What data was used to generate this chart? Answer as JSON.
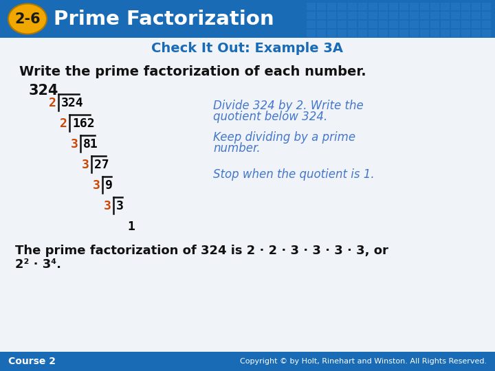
{
  "title_badge": "2-6",
  "title_text": "Prime Factorization",
  "subtitle": "Check It Out: Example 3A",
  "header_bg_color": "#1a6bb5",
  "header_text_color": "#ffffff",
  "badge_bg_color": "#f0a800",
  "badge_text_color": "#1a1a1a",
  "subtitle_color": "#1a6bb5",
  "body_bg_color": "#f0f4f8",
  "instruction": "Write the prime factorization of each number.",
  "number_label": "324",
  "divisor_color": "#cc4400",
  "dividend_color": "#000000",
  "note_color": "#4477cc",
  "conclusion1": "The prime factorization of 324 is 2 · 2 · 3 · 3 · 3 · 3, or",
  "conclusion2": "2² · 3⁴.",
  "footer_bg": "#1a6bb5",
  "footer_left": "Course 2",
  "footer_right": "Copyright © by Holt, Rinehart and Winston. All Rights Reserved.",
  "footer_text_color": "#ffffff",
  "grid_pattern_color": "#2a7bc8",
  "division_steps": [
    {
      "divisor": "2",
      "dividend": "324"
    },
    {
      "divisor": "2",
      "dividend": "162"
    },
    {
      "divisor": "3",
      "dividend": "81"
    },
    {
      "divisor": "3",
      "dividend": "27"
    },
    {
      "divisor": "3",
      "dividend": "9"
    },
    {
      "divisor": "3",
      "dividend": "3"
    },
    {
      "divisor": "",
      "dividend": "1"
    }
  ]
}
